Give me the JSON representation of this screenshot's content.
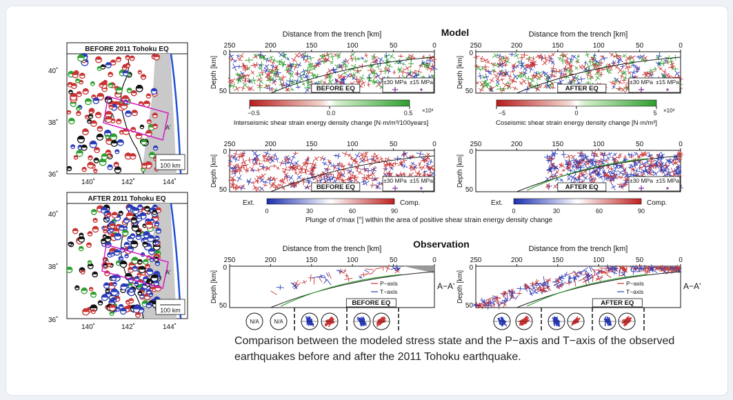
{
  "maps": {
    "before_title": "BEFORE 2011 Tohoku EQ",
    "after_title": "AFTER 2011 Tohoku EQ",
    "lat_labels": [
      "40˚",
      "38˚",
      "36˚"
    ],
    "lon_labels": [
      "140˚",
      "142˚",
      "144˚"
    ],
    "scale_label": "100 km",
    "profile_start": "A",
    "profile_end": "A'"
  },
  "sections": {
    "model": "Model",
    "observation": "Observation"
  },
  "panels": {
    "distance_label": "Distance from the trench [km]",
    "depth_label": "Depth [km]",
    "distance_ticks": [
      "250",
      "200",
      "150",
      "100",
      "50",
      "0"
    ],
    "depth_ticks": [
      "0",
      "50"
    ],
    "before_eq": "BEFORE EQ",
    "after_eq": "AFTER EQ",
    "stress_30": "±30 MPa",
    "stress_15": "±15 MPa",
    "p_axis": "P−axis",
    "t_axis": "T−axis",
    "profile": "A−A'",
    "na": "N/A"
  },
  "colorbars": {
    "interseismic_ticks": [
      "−0.5",
      "0.0",
      "0.5"
    ],
    "interseismic_exp": "×10³",
    "interseismic_label": "Interseismic shear strain energy density change [N·m/m³/100years]",
    "coseismic_ticks": [
      "−5",
      "0",
      "5"
    ],
    "coseismic_exp": "×10³",
    "coseismic_label": "Coseismic shear strain energy density change [N·m/m³]",
    "plunge_ticks": [
      "0",
      "30",
      "60",
      "90"
    ],
    "ext": "Ext.",
    "comp": "Comp.",
    "plunge_label": "Plunge of σ′max [°]  within the area of positive shear strain energy density change"
  },
  "caption": "Comparison between the modeled stress state and the P−axis and T−axis of the observed earthquakes before and after the 2011 Tohoku earthquake.",
  "colors": {
    "red": "#c83232",
    "blue": "#2a3bb8",
    "green": "#2e9e2e",
    "trench": "#1f4fd6",
    "magenta": "#d01cc8"
  }
}
